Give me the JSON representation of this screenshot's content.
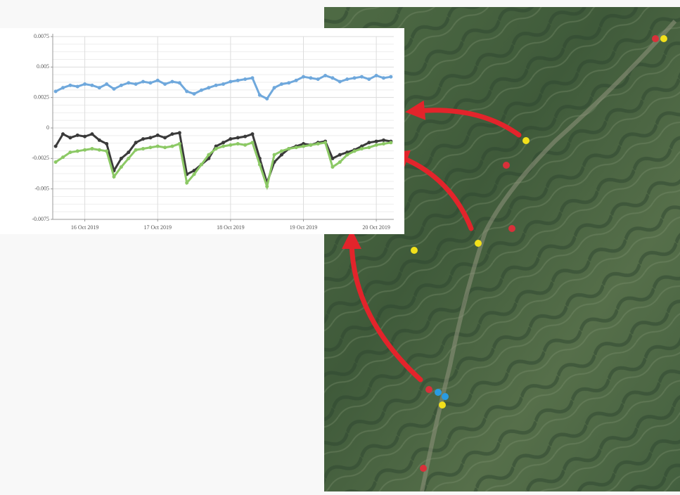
{
  "chart_data": {
    "type": "line",
    "x": [
      15.6,
      15.7,
      15.8,
      15.9,
      16.0,
      16.1,
      16.2,
      16.3,
      16.4,
      16.5,
      16.6,
      16.7,
      16.8,
      16.9,
      17.0,
      17.1,
      17.2,
      17.3,
      17.4,
      17.5,
      17.6,
      17.7,
      17.8,
      17.9,
      18.0,
      18.1,
      18.2,
      18.3,
      18.4,
      18.5,
      18.6,
      18.7,
      18.8,
      18.9,
      19.0,
      19.1,
      19.2,
      19.3,
      19.4,
      19.5,
      19.6,
      19.7,
      19.8,
      19.9,
      20.0,
      20.1,
      20.2
    ],
    "series": [
      {
        "color": "#6fa8dc",
        "values": [
          0.003,
          0.0033,
          0.0035,
          0.0034,
          0.0036,
          0.0035,
          0.0033,
          0.0036,
          0.0032,
          0.0035,
          0.0037,
          0.0036,
          0.0038,
          0.0037,
          0.0039,
          0.0036,
          0.0038,
          0.0037,
          0.003,
          0.0028,
          0.0031,
          0.0033,
          0.0035,
          0.0036,
          0.0038,
          0.0039,
          0.004,
          0.0041,
          0.0027,
          0.0024,
          0.0033,
          0.0036,
          0.0037,
          0.0039,
          0.0042,
          0.0041,
          0.004,
          0.0043,
          0.0041,
          0.0038,
          0.004,
          0.0041,
          0.0042,
          0.004,
          0.0043,
          0.0041,
          0.0042
        ]
      },
      {
        "color": "#3a3a3a",
        "values": [
          -0.0015,
          -0.0005,
          -0.0008,
          -0.0006,
          -0.0007,
          -0.0005,
          -0.001,
          -0.0013,
          -0.0035,
          -0.0025,
          -0.002,
          -0.0012,
          -0.0009,
          -0.0008,
          -0.0006,
          -0.0008,
          -0.0005,
          -0.0004,
          -0.0038,
          -0.0035,
          -0.003,
          -0.0025,
          -0.0015,
          -0.0012,
          -0.0009,
          -0.0008,
          -0.0007,
          -0.0005,
          -0.0025,
          -0.0045,
          -0.0028,
          -0.0022,
          -0.0017,
          -0.0015,
          -0.0013,
          -0.0014,
          -0.0012,
          -0.0011,
          -0.0025,
          -0.0022,
          -0.002,
          -0.0018,
          -0.0015,
          -0.0012,
          -0.0011,
          -0.001,
          -0.0011
        ]
      },
      {
        "color": "#8cc965",
        "values": [
          -0.0028,
          -0.0024,
          -0.002,
          -0.0019,
          -0.0018,
          -0.0017,
          -0.0018,
          -0.0019,
          -0.004,
          -0.0032,
          -0.0025,
          -0.0018,
          -0.0017,
          -0.0016,
          -0.0015,
          -0.0016,
          -0.0015,
          -0.0013,
          -0.0045,
          -0.0038,
          -0.003,
          -0.0022,
          -0.0017,
          -0.0015,
          -0.0014,
          -0.0013,
          -0.0014,
          -0.0012,
          -0.003,
          -0.0048,
          -0.0022,
          -0.0019,
          -0.0017,
          -0.0016,
          -0.0015,
          -0.0014,
          -0.0013,
          -0.0012,
          -0.0032,
          -0.0028,
          -0.0022,
          -0.0019,
          -0.0017,
          -0.0016,
          -0.0014,
          -0.0013,
          -0.0012
        ]
      }
    ],
    "xlim": [
      15.56,
      20.24
    ],
    "xticks": [
      {
        "value": 16,
        "label": "16 Oct 2019"
      },
      {
        "value": 17,
        "label": "17 Oct 2019"
      },
      {
        "value": 18,
        "label": "18 Oct 2019"
      },
      {
        "value": 19,
        "label": "19 Oct 2019"
      },
      {
        "value": 20,
        "label": "20 Oct 2019"
      }
    ],
    "ylim": [
      -0.0075,
      0.0075
    ],
    "yticks": [
      0.0075,
      0.005,
      0.0025,
      0,
      -0.0025,
      -0.005,
      -0.0075
    ],
    "grid": true
  }
}
